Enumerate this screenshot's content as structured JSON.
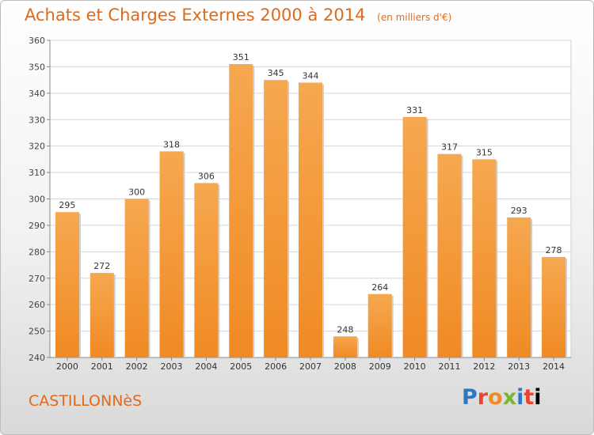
{
  "header": {
    "title": "Achats et Charges Externes 2000 à 2014",
    "unit": "(en milliers d'€)"
  },
  "footer": {
    "town": "CASTILLONNèS",
    "logo": [
      "P",
      "r",
      "o",
      "x",
      "i",
      "t",
      "i"
    ]
  },
  "colors": {
    "bar": "#f08a24",
    "bar_light": "#f6a850",
    "title": "#e06a1a",
    "grid": "#d6d6d6"
  },
  "chart_data": {
    "type": "bar",
    "categories": [
      "2000",
      "2001",
      "2002",
      "2003",
      "2004",
      "2005",
      "2006",
      "2007",
      "2008",
      "2009",
      "2010",
      "2011",
      "2012",
      "2013",
      "2014"
    ],
    "values": [
      295,
      272,
      300,
      318,
      306,
      351,
      345,
      344,
      248,
      264,
      331,
      317,
      315,
      293,
      278
    ],
    "ylim": [
      240,
      360
    ],
    "yticks": [
      240,
      250,
      260,
      270,
      280,
      290,
      300,
      310,
      320,
      330,
      340,
      350,
      360
    ],
    "grid": true,
    "data_labels": true
  }
}
